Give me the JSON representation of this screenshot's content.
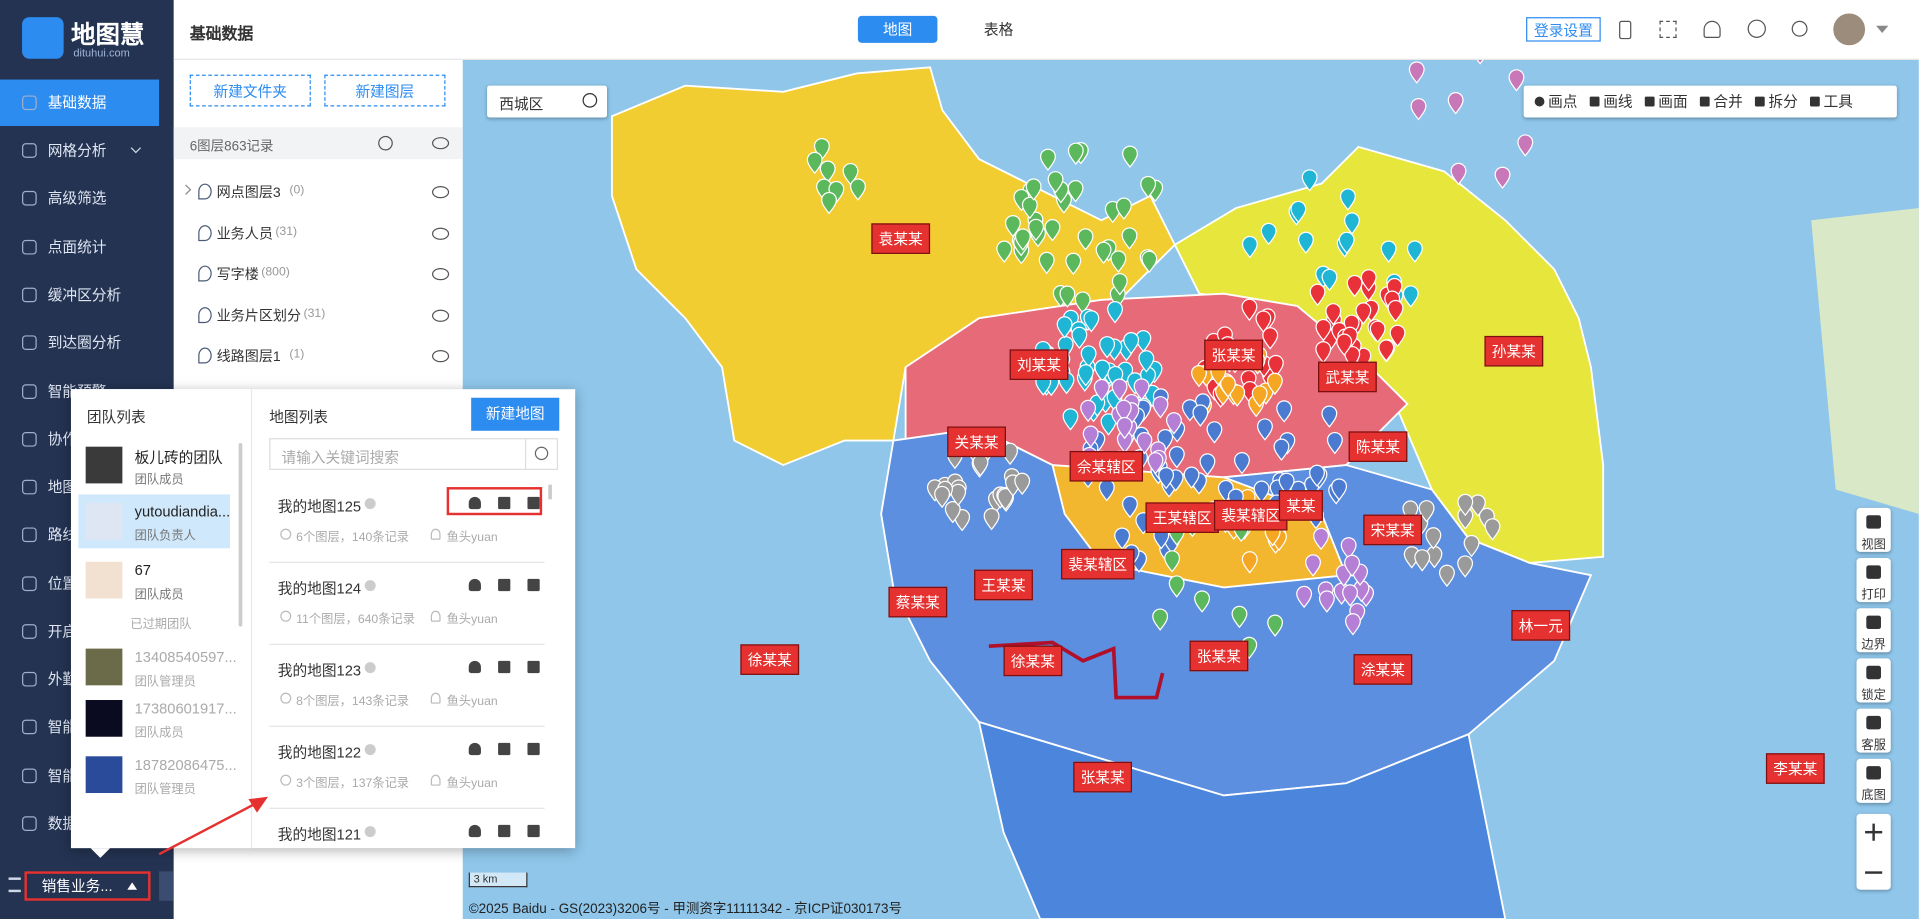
{
  "sidebar": {
    "logo_name": "地图慧",
    "logo_url": "dituhui.com",
    "menu": [
      "基础数据",
      "网格分析",
      "高级筛选",
      "点面统计",
      "缓冲区分析",
      "到达圈分析",
      "智能预警",
      "协作",
      "地图",
      "路线",
      "位置",
      "开启",
      "外勤",
      "智能",
      "智能",
      "数据"
    ],
    "current_team": "销售业务..."
  },
  "header": {
    "title": "基础数据",
    "tabs": [
      "地图",
      "表格"
    ],
    "login_button": "登录设置"
  },
  "layers": {
    "buttons": [
      "新建文件夹",
      "新建图层"
    ],
    "summary": "6图层863记录",
    "items": [
      {
        "name": "网点图层3",
        "count": "(0)"
      },
      {
        "name": "业务人员",
        "count": "(31)"
      },
      {
        "name": "写字楼",
        "count": "(800)"
      },
      {
        "name": "业务片区划分",
        "count": "(31)"
      },
      {
        "name": "线路图层1",
        "count": "(1)"
      }
    ]
  },
  "map": {
    "district": "西城区",
    "tools": [
      "画点",
      "画线",
      "画面",
      "合并",
      "拆分",
      "工具"
    ],
    "right_tools": [
      "视图",
      "打印",
      "边界",
      "锁定",
      "客服",
      "底图"
    ],
    "labels": [
      "袁某某",
      "刘某某",
      "张某某",
      "武某某",
      "孙某某",
      "关某某",
      "佘某辖区",
      "陈某某",
      "王某辖区",
      "裴某辖区",
      "某某",
      "宋某某",
      "裴某辖区",
      "王某某",
      "蔡某某",
      "林一元",
      "徐某某",
      "徐某某",
      "张某某",
      "涂某某",
      "张某某",
      "李某某"
    ],
    "scale": "3 km",
    "copyright": "©2025 Baidu - GS(2023)3206号 - 甲测资字11111342 - 京ICP证030173号"
  },
  "popup": {
    "team_title": "团队列表",
    "teams": [
      {
        "name": "板儿砖的团队",
        "role": "团队成员"
      },
      {
        "name": "yutoudiandia...",
        "role": "团队负责人"
      },
      {
        "name": "67",
        "role": "团队成员"
      }
    ],
    "expired_label": "已过期团队",
    "expired_teams": [
      {
        "name": "13408540597...",
        "role": "团队管理员"
      },
      {
        "name": "17380601917...",
        "role": "团队成员"
      },
      {
        "name": "18782086475...",
        "role": "团队管理员"
      }
    ],
    "map_title": "地图列表",
    "new_map": "新建地图",
    "search_placeholder": "请输入关键词搜索",
    "maps": [
      {
        "name": "我的地图125",
        "summary": "6个图层，140条记录",
        "owner": "鱼头yuan"
      },
      {
        "name": "我的地图124",
        "summary": "11个图层，640条记录",
        "owner": "鱼头yuan"
      },
      {
        "name": "我的地图123",
        "summary": "8个图层，143条记录",
        "owner": "鱼头yuan"
      },
      {
        "name": "我的地图122",
        "summary": "3个图层，137条记录",
        "owner": "鱼头yuan"
      },
      {
        "name": "我的地图121"
      }
    ]
  }
}
